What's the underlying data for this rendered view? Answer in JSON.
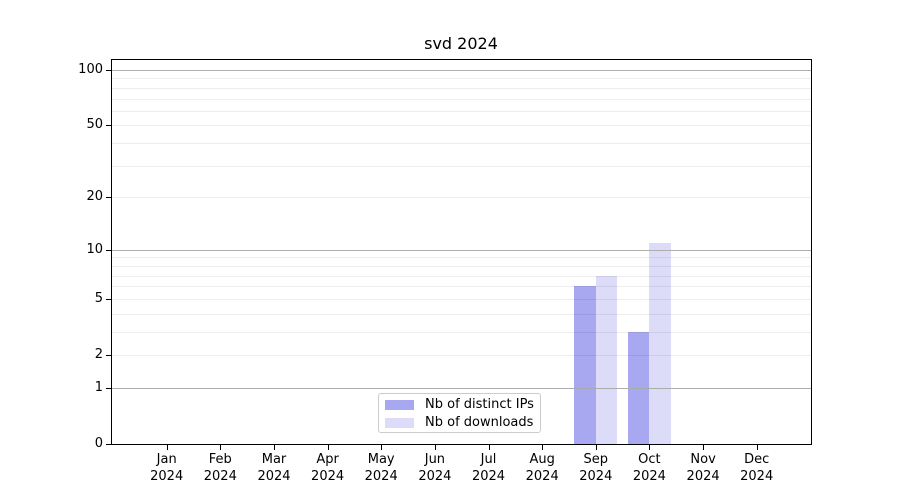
{
  "chart_data": {
    "type": "bar",
    "title": "svd 2024",
    "categories": [
      "Jan 2024",
      "Feb 2024",
      "Mar 2024",
      "Apr 2024",
      "May 2024",
      "Jun 2024",
      "Jul 2024",
      "Aug 2024",
      "Sep 2024",
      "Oct 2024",
      "Nov 2024",
      "Dec 2024"
    ],
    "series": [
      {
        "name": "Nb of distinct IPs",
        "color": "#a8a8f0",
        "values": [
          0,
          0,
          0,
          0,
          0,
          0,
          0,
          0,
          6,
          3,
          0,
          0
        ]
      },
      {
        "name": "Nb of downloads",
        "color": "#dcdcf8",
        "values": [
          0,
          0,
          0,
          0,
          0,
          0,
          0,
          0,
          7,
          11,
          0,
          0
        ]
      }
    ],
    "yscale": "log1p",
    "ylim": [
      0,
      115
    ],
    "y_tick_labels": [
      100,
      50,
      20,
      10,
      5,
      2,
      1,
      0
    ],
    "y_gridlines_strong": [
      1,
      10,
      100
    ],
    "y_gridlines_weak": [
      2,
      3,
      4,
      5,
      6,
      7,
      8,
      9,
      20,
      30,
      40,
      50,
      60,
      70,
      80,
      90
    ],
    "grid": "on",
    "legend": {
      "position": "bottom-center",
      "entries": [
        "Nb of distinct IPs",
        "Nb of downloads"
      ]
    }
  }
}
